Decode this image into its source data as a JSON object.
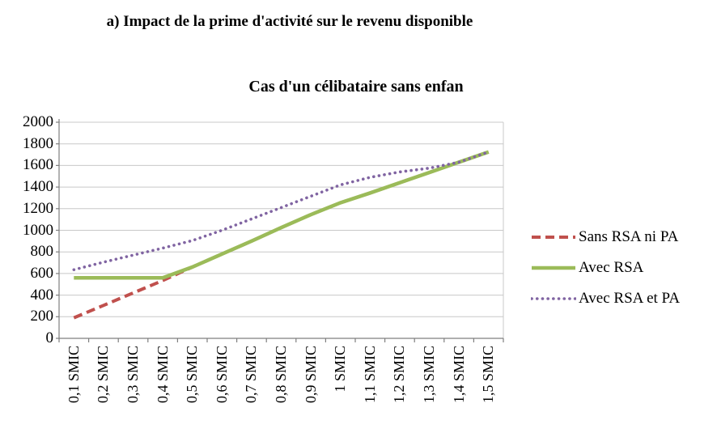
{
  "chart_data": {
    "type": "line",
    "title": "a) Impact de la prime d'activité sur le revenu disponible",
    "subtitle": "Cas d'un célibataire sans enfan",
    "categories": [
      "0,1 SMIC",
      "0,2 SMIC",
      "0,3 SMIC",
      "0,4 SMIC",
      "0,5 SMIC",
      "0,6 SMIC",
      "0,7 SMIC",
      "0,8 SMIC",
      "0,9 SMIC",
      "1 SMIC",
      "1,1 SMIC",
      "1,2 SMIC",
      "1,3 SMIC",
      "1,4 SMIC",
      "1,5 SMIC"
    ],
    "y_axis": {
      "min": 0,
      "max": 2000,
      "step": 200
    },
    "grid": true,
    "legend_position": "right",
    "series": [
      {
        "name": "Sans RSA ni PA",
        "color": "#C0504D",
        "style": "dashed",
        "values": [
          190,
          305,
          420,
          535,
          660,
          780,
          900,
          1025,
          1145,
          1255,
          1345,
          1440,
          1535,
          1630,
          1725
        ]
      },
      {
        "name": "Avec RSA",
        "color": "#9BBB59",
        "style": "solid",
        "values": [
          560,
          560,
          560,
          560,
          660,
          780,
          900,
          1025,
          1145,
          1255,
          1345,
          1440,
          1535,
          1630,
          1725
        ]
      },
      {
        "name": "Avec RSA et PA",
        "color": "#8064A2",
        "style": "dotted",
        "values": [
          635,
          705,
          770,
          835,
          905,
          1000,
          1105,
          1210,
          1315,
          1420,
          1490,
          1540,
          1575,
          1630,
          1725
        ]
      }
    ],
    "axis_color": "#7F7F7F",
    "grid_color": "#C8C8C8"
  }
}
